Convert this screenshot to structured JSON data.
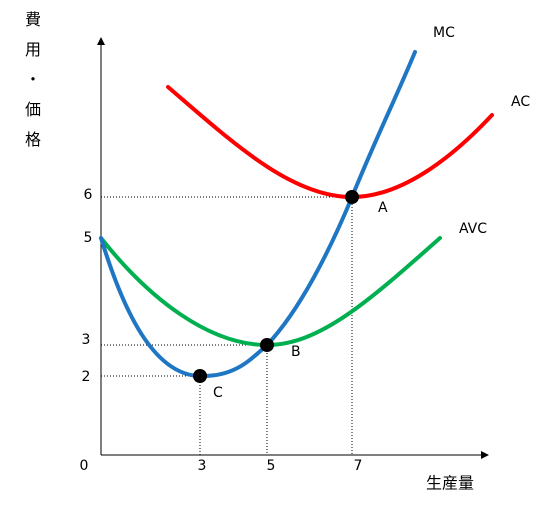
{
  "axes": {
    "y_label": "費用・価格",
    "x_label": "生産量",
    "origin": 0,
    "y_ticks": [
      6,
      5,
      3,
      2
    ],
    "x_ticks": [
      3,
      5,
      7
    ]
  },
  "curves": {
    "mc": "MC",
    "ac": "AC",
    "avc": "AVC"
  },
  "points": {
    "a": "A",
    "b": "B",
    "c": "C"
  }
}
